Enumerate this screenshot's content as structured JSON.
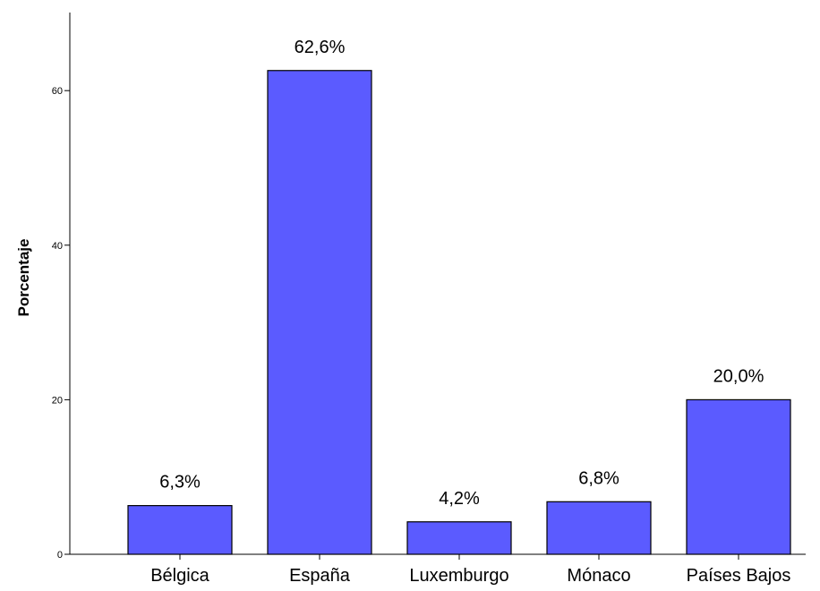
{
  "chart_data": {
    "type": "bar",
    "categories": [
      "Bélgica",
      "España",
      "Luxemburgo",
      "Mónaco",
      "Países Bajos"
    ],
    "values": [
      6.3,
      62.6,
      4.2,
      6.8,
      20.0
    ],
    "data_labels": [
      "6,3%",
      "62,6%",
      "4,2%",
      "6,8%",
      "20,0%"
    ],
    "ylabel": "Porcentaje",
    "xlabel": "",
    "ylim": [
      0,
      70
    ],
    "yticks": [
      0,
      20,
      40,
      60
    ],
    "grid": false,
    "bar_color": "#5b5bff",
    "bar_stroke": "#000000"
  }
}
